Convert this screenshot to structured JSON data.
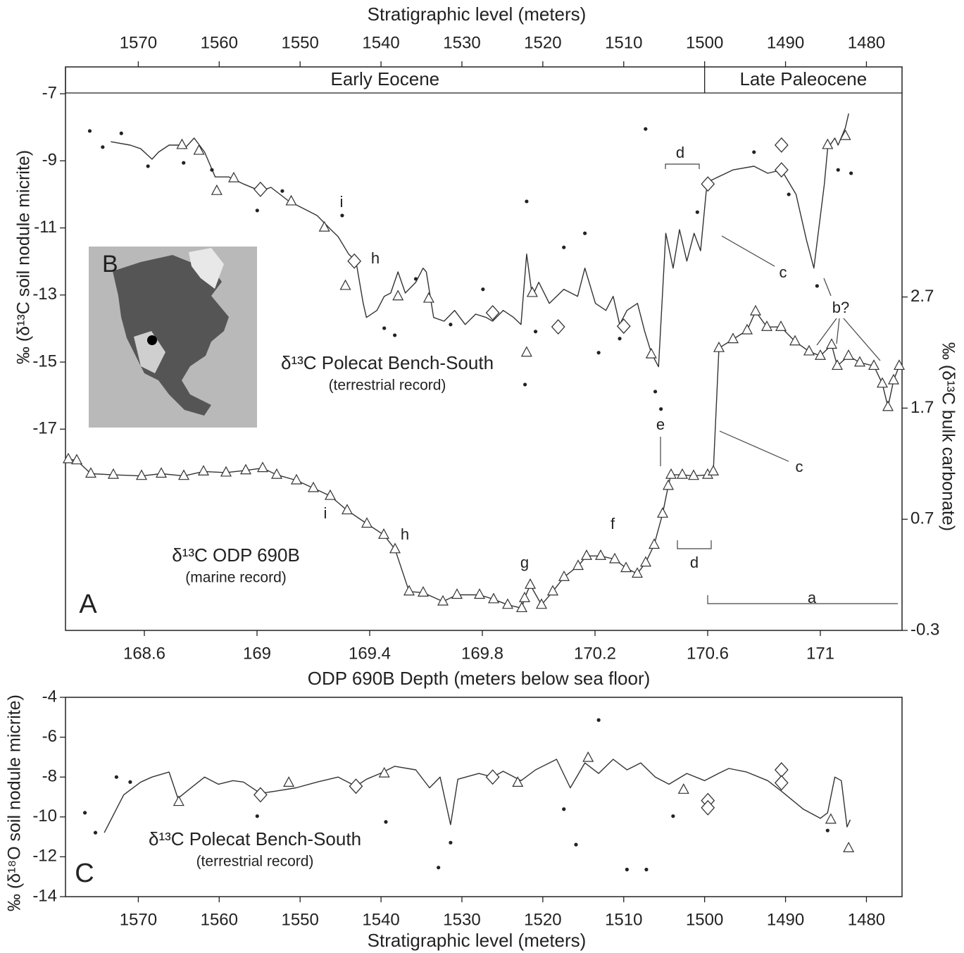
{
  "chart_data": [
    {
      "type": "line",
      "label": "A",
      "x2label": "Stratigraphic level (meters)",
      "xlabel": "ODP 690B Depth (meters below sea floor)",
      "ylabel": "‰ (δ¹³C soil nodule micrite)",
      "y2label": "‰ (δ¹³C bulk carbonate)",
      "x2lim": [
        1579,
        1475.6
      ],
      "x2ticks": [
        1570,
        1560,
        1550,
        1540,
        1530,
        1520,
        1510,
        1500,
        1490,
        1480
      ],
      "xlim": [
        168.32,
        171.29
      ],
      "xticks": [
        168.6,
        169,
        169.4,
        169.8,
        170.2,
        170.6,
        171
      ],
      "ylim": [
        -23,
        -6.2
      ],
      "yticks": [
        -7,
        -9,
        -11,
        -13,
        -15,
        -17
      ],
      "y2lim": [
        -0.3,
        4.77
      ],
      "y2ticks": [
        2.7,
        1.7,
        0.7,
        -0.3
      ],
      "periods": [
        {
          "label": "Early Eocene",
          "range": [
            1579,
            1500
          ]
        },
        {
          "label": "Late Paleocene",
          "range": [
            1500,
            1475.6
          ]
        }
      ],
      "inset": {
        "label": "B"
      },
      "annotations": [
        "i",
        "h",
        "d",
        "c",
        "b?",
        "e",
        "c",
        "i",
        "h",
        "f",
        "g",
        "d",
        "a"
      ],
      "series": [
        {
          "name": "δ¹³C Polecat Bench-South",
          "record": "(terrestrial record)",
          "xaxis": "x2",
          "line": true,
          "marker": "none",
          "color": "#333333",
          "x": [
            1573.4,
            1571.0,
            1569.7,
            1568.3,
            1567.5,
            1566.2,
            1564.9,
            1564.3,
            1563.1,
            1561.8,
            1560.5,
            1558.8,
            1557.0,
            1554.9,
            1553.6,
            1551.4,
            1549.6,
            1547.9,
            1546.2,
            1545.3,
            1544.0,
            1543.1,
            1542.2,
            1541.8,
            1540.5,
            1539.6,
            1538.8,
            1537.9,
            1537.0,
            1535.7,
            1534.8,
            1534.4,
            1533.5,
            1532.2,
            1530.9,
            1529.6,
            1528.3,
            1527.0,
            1526.2,
            1524.9,
            1523.6,
            1522.7,
            1522.0,
            1521.3,
            1520.5,
            1519.2,
            1517.4,
            1515.7,
            1514.8,
            1513.5,
            1512.2,
            1511.3,
            1510.5,
            1509.6,
            1508.3,
            1507.4,
            1506.6,
            1505.7,
            1504.8,
            1503.9,
            1503.1,
            1502.2,
            1501.3,
            1500.5,
            1499.8,
            1499.2,
            1496.5,
            1493.9,
            1492.2,
            1490.5,
            1488.7,
            1487.4,
            1486.5,
            1485.2,
            1484.8,
            1483.9,
            1483.5,
            1482.6,
            1482.2
          ],
          "values": [
            -8.43,
            -8.53,
            -8.64,
            -8.95,
            -8.74,
            -8.53,
            -8.53,
            -8.64,
            -8.32,
            -8.74,
            -9.48,
            -9.48,
            -9.69,
            -9.9,
            -9.79,
            -10.2,
            -10.42,
            -10.63,
            -11.05,
            -11.26,
            -11.78,
            -11.99,
            -13.25,
            -13.67,
            -13.46,
            -13.04,
            -12.94,
            -12.31,
            -12.94,
            -12.62,
            -12.2,
            -12.31,
            -13.67,
            -13.78,
            -13.46,
            -13.88,
            -13.57,
            -13.67,
            -13.78,
            -13.46,
            -13.67,
            -13.88,
            -11.78,
            -13.04,
            -12.62,
            -13.25,
            -12.83,
            -13.04,
            -12.2,
            -13.25,
            -13.46,
            -13.04,
            -13.88,
            -13.46,
            -13.25,
            -14.09,
            -14.72,
            -15.14,
            -11.16,
            -12.2,
            -11.05,
            -11.99,
            -11.16,
            -11.68,
            -9.9,
            -9.58,
            -9.27,
            -9.16,
            -9.37,
            -9.27,
            -10.0,
            -11.37,
            -12.2,
            -9.69,
            -8.64,
            -8.32,
            -8.53,
            -8.01,
            -7.59
          ]
        },
        {
          "xaxis": "x2",
          "line": false,
          "marker": "triangle",
          "color": "#333333",
          "x": [
            1564.6,
            1562.5,
            1560.3,
            1558.2,
            1551.1,
            1547.0,
            1544.4,
            1537.9,
            1534.1,
            1522.0,
            1521.3,
            1506.6,
            1482.6,
            1484.8
          ],
          "values": [
            -8.53,
            -8.7,
            -9.9,
            -9.52,
            -10.21,
            -10.99,
            -12.73,
            -13.04,
            -13.11,
            -14.72,
            -12.94,
            -14.77,
            -8.26,
            -8.53
          ]
        },
        {
          "xaxis": "x2",
          "line": false,
          "marker": "diamond",
          "color": "#333333",
          "x": [
            1554.9,
            1543.3,
            1526.2,
            1518.1,
            1510.0,
            1499.6,
            1490.5,
            1490.5
          ],
          "values": [
            -9.85,
            -11.99,
            -13.53,
            -13.95,
            -13.93,
            -9.69,
            -8.53,
            -9.27
          ]
        },
        {
          "xaxis": "x2",
          "line": false,
          "marker": "dot",
          "color": "#222222",
          "x": [
            1576.0,
            1574.4,
            1572.1,
            1568.8,
            1564.4,
            1560.9,
            1555.3,
            1552.2,
            1544.8,
            1539.6,
            1538.3,
            1535.7,
            1531.4,
            1527.4,
            1522.2,
            1522.0,
            1520.9,
            1517.4,
            1514.8,
            1513.1,
            1510.5,
            1507.3,
            1506.1,
            1505.4,
            1500.9,
            1493.9,
            1489.6,
            1486.1,
            1483.5,
            1481.9
          ],
          "values": [
            -8.11,
            -8.59,
            -8.18,
            -9.16,
            -9.06,
            -9.27,
            -10.48,
            -9.9,
            -10.63,
            -13.99,
            -14.2,
            -12.52,
            -13.88,
            -12.83,
            -15.67,
            -10.21,
            -14.09,
            -11.58,
            -11.16,
            -14.72,
            -14.3,
            -8.05,
            -15.88,
            -16.4,
            -10.53,
            -8.74,
            -10.0,
            -12.73,
            -9.27,
            -9.37
          ]
        },
        {
          "name": "δ¹³C ODP 690B",
          "record": "(marine record)",
          "axis": "y2",
          "line": true,
          "marker": "triangle",
          "color": "#333333",
          "x": [
            168.33,
            168.36,
            168.41,
            168.49,
            168.59,
            168.66,
            168.74,
            168.81,
            168.89,
            168.96,
            169.02,
            169.07,
            169.14,
            169.2,
            169.26,
            169.32,
            169.39,
            169.45,
            169.49,
            169.54,
            169.59,
            169.66,
            169.71,
            169.79,
            169.84,
            169.89,
            169.94,
            169.95,
            169.97,
            170.01,
            170.05,
            170.09,
            170.14,
            170.17,
            170.22,
            170.27,
            170.31,
            170.35,
            170.38,
            170.41,
            170.44,
            170.46,
            170.47,
            170.51,
            170.55,
            170.6,
            170.62,
            170.64,
            170.69,
            170.74,
            170.77,
            170.81,
            170.86,
            170.91,
            170.96,
            171.0,
            171.04,
            171.06,
            171.1,
            171.14,
            171.19,
            171.22,
            171.24,
            171.26,
            171.28
          ],
          "values": [
            1.24,
            1.23,
            1.11,
            1.1,
            1.09,
            1.11,
            1.09,
            1.13,
            1.12,
            1.14,
            1.16,
            1.1,
            1.05,
            0.98,
            0.91,
            0.78,
            0.66,
            0.56,
            0.43,
            0.05,
            0.04,
            -0.04,
            0.02,
            0.02,
            -0.02,
            -0.07,
            -0.1,
            -0.01,
            0.11,
            -0.07,
            0.05,
            0.18,
            0.28,
            0.37,
            0.37,
            0.34,
            0.26,
            0.21,
            0.31,
            0.47,
            0.75,
            1.0,
            1.1,
            1.1,
            1.09,
            1.1,
            1.13,
            2.24,
            2.32,
            2.4,
            2.57,
            2.43,
            2.43,
            2.3,
            2.21,
            2.17,
            2.27,
            2.08,
            2.17,
            2.11,
            2.08,
            1.92,
            1.71,
            1.95,
            2.08
          ]
        }
      ]
    },
    {
      "type": "line",
      "label": "C",
      "xlabel": "Stratigraphic level (meters)",
      "ylabel": "‰ (δ¹⁸O soil nodule micrite)",
      "xlim": [
        1579,
        1475.6
      ],
      "xticks": [
        1570,
        1560,
        1550,
        1540,
        1530,
        1520,
        1510,
        1500,
        1490,
        1480
      ],
      "ylim": [
        -14,
        -4
      ],
      "yticks": [
        -4,
        -6,
        -8,
        -10,
        -12,
        -14
      ],
      "series": [
        {
          "name": "δ¹³C Polecat Bench-South",
          "record": "(terrestrial record)",
          "line": true,
          "marker": "none",
          "color": "#333333",
          "x": [
            1574.2,
            1571.8,
            1569.7,
            1568.3,
            1566.2,
            1565.1,
            1564.0,
            1561.8,
            1560.1,
            1558.3,
            1557.0,
            1554.9,
            1553.1,
            1550.5,
            1547.9,
            1545.3,
            1543.1,
            1541.8,
            1540.1,
            1538.3,
            1535.7,
            1534.0,
            1532.7,
            1531.4,
            1530.5,
            1527.9,
            1526.2,
            1524.9,
            1522.7,
            1520.9,
            1518.3,
            1516.6,
            1514.8,
            1513.1,
            1511.3,
            1509.6,
            1507.9,
            1506.1,
            1504.4,
            1502.2,
            1500.0,
            1498.3,
            1497.0,
            1494.8,
            1492.2,
            1490.5,
            1487.8,
            1485.7,
            1484.8,
            1483.9,
            1483.1,
            1482.4,
            1482.0
          ],
          "values": [
            -10.79,
            -8.89,
            -8.25,
            -8.0,
            -7.75,
            -9.07,
            -8.71,
            -8.0,
            -8.36,
            -8.18,
            -8.25,
            -8.82,
            -8.71,
            -8.54,
            -8.25,
            -8.0,
            -8.46,
            -8.11,
            -7.82,
            -7.46,
            -7.64,
            -8.54,
            -8.0,
            -10.39,
            -8.11,
            -7.82,
            -8.0,
            -7.71,
            -8.18,
            -7.64,
            -7.11,
            -8.54,
            -7.29,
            -7.82,
            -7.11,
            -7.64,
            -7.29,
            -8.0,
            -8.36,
            -7.82,
            -8.18,
            -7.82,
            -7.57,
            -7.75,
            -8.18,
            -8.71,
            -9.61,
            -10.07,
            -9.79,
            -8.0,
            -8.18,
            -10.5,
            -10.14
          ]
        },
        {
          "line": false,
          "marker": "triangle",
          "color": "#333333",
          "x": [
            1565.0,
            1551.4,
            1539.6,
            1523.1,
            1514.4,
            1502.6,
            1484.4,
            1482.2
          ],
          "values": [
            -9.25,
            -8.29,
            -7.82,
            -8.29,
            -7.04,
            -8.64,
            -10.14,
            -11.57
          ]
        },
        {
          "line": false,
          "marker": "diamond",
          "color": "#333333",
          "x": [
            1554.9,
            1543.1,
            1526.2,
            1499.6,
            1499.6,
            1490.5,
            1490.5
          ],
          "values": [
            -8.89,
            -8.46,
            -8.0,
            -9.18,
            -9.54,
            -7.64,
            -8.29
          ]
        },
        {
          "line": false,
          "marker": "dot",
          "color": "#222222",
          "x": [
            1576.6,
            1575.3,
            1572.7,
            1571.0,
            1555.3,
            1539.4,
            1532.9,
            1531.4,
            1517.4,
            1515.9,
            1513.1,
            1509.6,
            1507.2,
            1503.9,
            1484.8
          ],
          "values": [
            -9.79,
            -10.79,
            -8.0,
            -8.25,
            -9.96,
            -10.25,
            -12.54,
            -11.29,
            -9.61,
            -11.39,
            -5.14,
            -12.64,
            -12.64,
            -9.96,
            -10.68
          ]
        }
      ]
    }
  ]
}
